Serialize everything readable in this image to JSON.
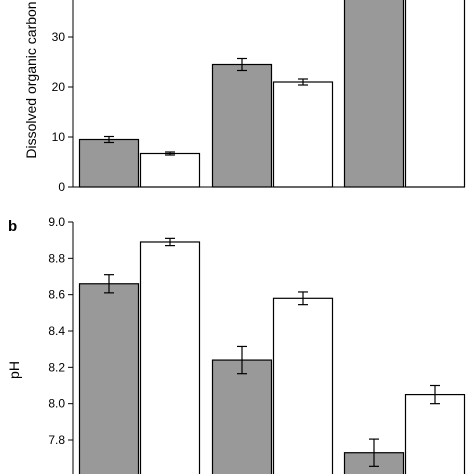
{
  "chart_data": [
    {
      "type": "bar",
      "panel_label": "",
      "ylabel": "Dissolved organic carbon",
      "ylim": [
        0,
        40
      ],
      "yticks": [
        "0",
        "10",
        "20",
        "30"
      ],
      "groups": 3,
      "series": [
        {
          "fill": "#999999",
          "values": [
            9.5,
            24.5,
            40
          ],
          "errors": [
            0.6,
            1.2,
            0
          ]
        },
        {
          "fill": "#ffffff",
          "values": [
            6.7,
            21.0,
            40
          ],
          "errors": [
            0.3,
            0.6,
            0
          ]
        }
      ]
    },
    {
      "type": "bar",
      "panel_label": "b",
      "ylabel": "pH",
      "ylim": [
        7.6,
        9.0
      ],
      "yticks": [
        "7.8",
        "8.0",
        "8.2",
        "8.4",
        "8.6",
        "8.8",
        "9.0"
      ],
      "groups": 3,
      "series": [
        {
          "fill": "#999999",
          "values": [
            8.66,
            8.24,
            7.73
          ],
          "errors": [
            0.05,
            0.075,
            0.075
          ]
        },
        {
          "fill": "#ffffff",
          "values": [
            8.89,
            8.58,
            8.05
          ],
          "errors": [
            0.02,
            0.035,
            0.05
          ]
        }
      ]
    }
  ]
}
